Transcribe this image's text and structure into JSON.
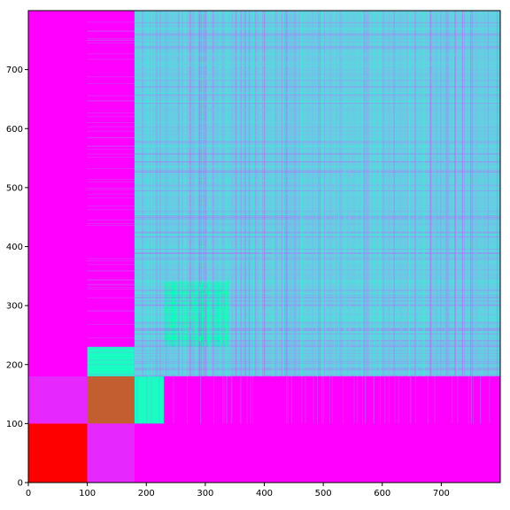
{
  "chart_data": {
    "type": "heatmap",
    "title": "",
    "xlabel": "",
    "ylabel": "",
    "xlim": [
      0,
      800
    ],
    "ylim": [
      0,
      800
    ],
    "colormap": "rainbow",
    "xticks": [
      0,
      100,
      200,
      300,
      400,
      500,
      600,
      700
    ],
    "yticks": [
      0,
      100,
      200,
      300,
      400,
      500,
      600,
      700
    ],
    "xtick_labels": [
      "0",
      "100",
      "200",
      "300",
      "400",
      "500",
      "600",
      "700"
    ],
    "ytick_labels": [
      "0",
      "100",
      "200",
      "300",
      "400",
      "500",
      "600",
      "700"
    ],
    "background_value": 0.0,
    "blocks": [
      {
        "x": [
          0,
          100
        ],
        "y": [
          0,
          100
        ],
        "value": 1.0
      },
      {
        "x": [
          100,
          180
        ],
        "y": [
          100,
          180
        ],
        "value": 0.88
      },
      {
        "x": [
          0,
          100
        ],
        "y": [
          100,
          180
        ],
        "value": 0.05
      },
      {
        "x": [
          100,
          180
        ],
        "y": [
          0,
          100
        ],
        "value": 0.05
      },
      {
        "x": [
          180,
          230
        ],
        "y": [
          100,
          180
        ],
        "value": 0.45
      },
      {
        "x": [
          100,
          180
        ],
        "y": [
          180,
          230
        ],
        "value": 0.45
      },
      {
        "x": [
          180,
          800
        ],
        "y": [
          180,
          800
        ],
        "value": 0.3
      },
      {
        "x": [
          230,
          340
        ],
        "y": [
          230,
          340
        ],
        "value": 0.5
      }
    ],
    "colors": {
      "max": "#ff0000",
      "min": "#8000ff",
      "mid": "#2dc0f0"
    }
  }
}
